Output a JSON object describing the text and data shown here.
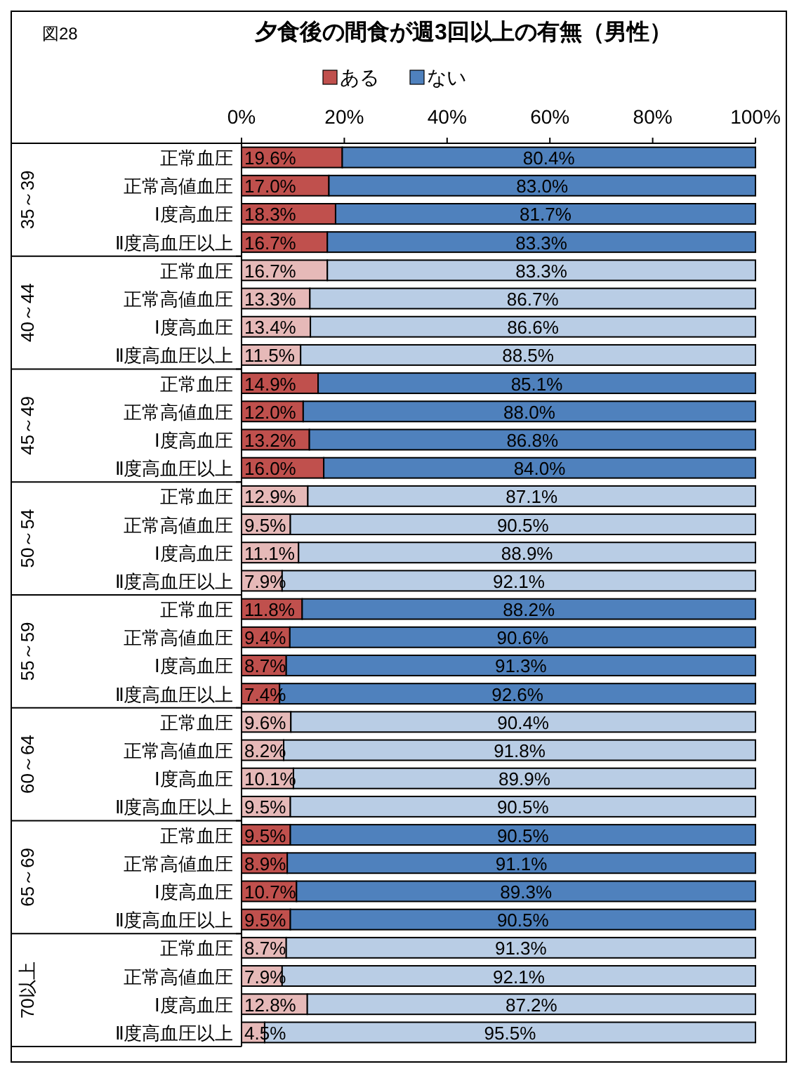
{
  "chart_data": {
    "type": "bar",
    "orientation": "horizontal",
    "stacked": true,
    "title": "夕食後の間食が週3回以上の有無（男性）",
    "annotations": [
      "図28",
      "35～39",
      "40～44",
      "45～49",
      "50～54",
      "55～59",
      "60～64",
      "65～69",
      "70以上"
    ],
    "categories": [
      "正常血圧",
      "正常高値血圧",
      "Ⅰ度高血圧",
      "Ⅱ度高血圧以上",
      "正常血圧",
      "正常高値血圧",
      "Ⅰ度高血圧",
      "Ⅱ度高血圧以上",
      "正常血圧",
      "正常高値血圧",
      "Ⅰ度高血圧",
      "Ⅱ度高血圧以上",
      "正常血圧",
      "正常高値血圧",
      "Ⅰ度高血圧",
      "Ⅱ度高血圧以上",
      "正常血圧",
      "正常高値血圧",
      "Ⅰ度高血圧",
      "Ⅱ度高血圧以上",
      "正常血圧",
      "正常高値血圧",
      "Ⅰ度高血圧",
      "Ⅱ度高血圧以上",
      "正常血圧",
      "正常高値血圧",
      "Ⅰ度高血圧",
      "Ⅱ度高血圧以上",
      "正常血圧",
      "正常高値血圧",
      "Ⅰ度高血圧",
      "Ⅱ度高血圧以上"
    ],
    "series": [
      {
        "name": "ある",
        "color": "#c0504d",
        "colors": [
          "#c0504d",
          "#c0504d",
          "#c0504d",
          "#c0504d",
          "#e6b9b8",
          "#e6b9b8",
          "#e6b9b8",
          "#e6b9b8",
          "#c0504d",
          "#c0504d",
          "#c0504d",
          "#c0504d",
          "#e6b9b8",
          "#e6b9b8",
          "#e6b9b8",
          "#e6b9b8",
          "#c0504d",
          "#c0504d",
          "#c0504d",
          "#c0504d",
          "#e6b9b8",
          "#e6b9b8",
          "#e6b9b8",
          "#e6b9b8",
          "#c0504d",
          "#c0504d",
          "#c0504d",
          "#c0504d",
          "#e6b9b8",
          "#e6b9b8",
          "#e6b9b8",
          "#e6b9b8"
        ],
        "values": [
          19.6,
          17.0,
          18.3,
          16.7,
          16.7,
          13.3,
          13.4,
          11.5,
          14.9,
          12.0,
          13.2,
          16.0,
          12.9,
          9.5,
          11.1,
          7.9,
          11.8,
          9.4,
          8.7,
          7.4,
          9.6,
          8.2,
          10.1,
          9.5,
          9.5,
          8.9,
          10.7,
          9.5,
          8.7,
          7.9,
          12.8,
          4.5
        ],
        "value_labels": [
          "19.6%",
          "17.0%",
          "18.3%",
          "16.7%",
          "16.7%",
          "13.3%",
          "13.4%",
          "11.5%",
          "14.9%",
          "12.0%",
          "13.2%",
          "16.0%",
          "12.9%",
          "9.5%",
          "11.1%",
          "7.9%",
          "11.8%",
          "9.4%",
          "8.7%",
          "7.4%",
          "9.6%",
          "8.2%",
          "10.1%",
          "9.5%",
          "9.5%",
          "8.9%",
          "10.7%",
          "9.5%",
          "8.7%",
          "7.9%",
          "12.8%",
          "4.5%"
        ]
      },
      {
        "name": "ない",
        "color": "#4f81bd",
        "colors": [
          "#4f81bd",
          "#4f81bd",
          "#4f81bd",
          "#4f81bd",
          "#b9cde5",
          "#b9cde5",
          "#b9cde5",
          "#b9cde5",
          "#4f81bd",
          "#4f81bd",
          "#4f81bd",
          "#4f81bd",
          "#b9cde5",
          "#b9cde5",
          "#b9cde5",
          "#b9cde5",
          "#4f81bd",
          "#4f81bd",
          "#4f81bd",
          "#4f81bd",
          "#b9cde5",
          "#b9cde5",
          "#b9cde5",
          "#b9cde5",
          "#4f81bd",
          "#4f81bd",
          "#4f81bd",
          "#4f81bd",
          "#b9cde5",
          "#b9cde5",
          "#b9cde5",
          "#b9cde5"
        ],
        "values": [
          80.4,
          83.0,
          81.7,
          83.3,
          83.3,
          86.7,
          86.6,
          88.5,
          85.1,
          88.0,
          86.8,
          84.0,
          87.1,
          90.5,
          88.9,
          92.1,
          88.2,
          90.6,
          91.3,
          92.6,
          90.4,
          91.8,
          89.9,
          90.5,
          90.5,
          91.1,
          89.3,
          90.5,
          91.3,
          92.1,
          87.2,
          95.5
        ],
        "value_labels": [
          "80.4%",
          "83.0%",
          "81.7%",
          "83.3%",
          "83.3%",
          "86.7%",
          "86.6%",
          "88.5%",
          "85.1%",
          "88.0%",
          "86.8%",
          "84.0%",
          "87.1%",
          "90.5%",
          "88.9%",
          "92.1%",
          "88.2%",
          "90.6%",
          "91.3%",
          "92.6%",
          "90.4%",
          "91.8%",
          "89.9%",
          "90.5%",
          "90.5%",
          "91.1%",
          "89.3%",
          "90.5%",
          "91.3%",
          "92.1%",
          "87.2%",
          "95.5%"
        ]
      }
    ],
    "xlim": [
      0,
      100
    ],
    "xticks": [
      {
        "value": 0,
        "label": "0%"
      },
      {
        "value": 20,
        "label": "20%"
      },
      {
        "value": 40,
        "label": "40%"
      },
      {
        "value": 60,
        "label": "60%"
      },
      {
        "value": 80,
        "label": "80%"
      },
      {
        "value": 100,
        "label": "100%"
      }
    ],
    "legend": "top"
  }
}
